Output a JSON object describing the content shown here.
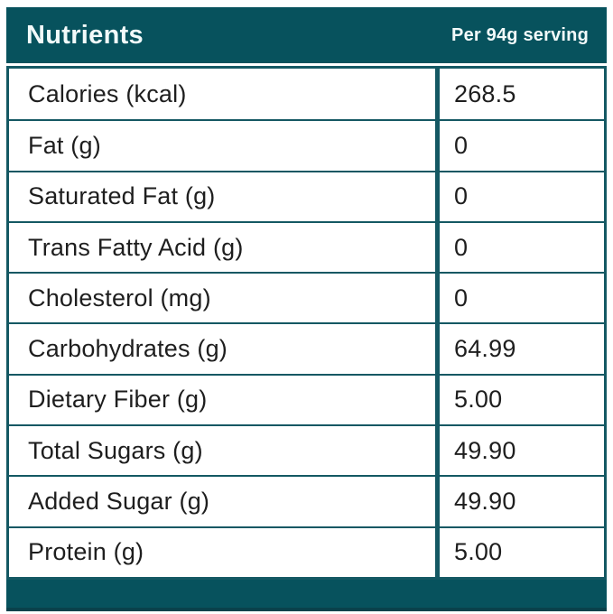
{
  "header": {
    "title": "Nutrients",
    "serving_label": "Per 94g serving"
  },
  "table": {
    "columns": [
      "Nutrients",
      "Per 94g serving"
    ],
    "rows": [
      {
        "label": "Calories (kcal)",
        "value": "268.5"
      },
      {
        "label": "Fat (g)",
        "value": "0"
      },
      {
        "label": "Saturated Fat (g)",
        "value": "0"
      },
      {
        "label": "Trans Fatty Acid (g)",
        "value": "0"
      },
      {
        "label": "Cholesterol (mg)",
        "value": "0"
      },
      {
        "label": "Carbohydrates (g)",
        "value": "64.99"
      },
      {
        "label": "Dietary Fiber (g)",
        "value": "5.00"
      },
      {
        "label": "Total Sugars (g)",
        "value": "49.90"
      },
      {
        "label": "Added Sugar (g)",
        "value": "49.90"
      },
      {
        "label": "Protein (g)",
        "value": "5.00"
      }
    ]
  },
  "colors": {
    "band_teal": "#07525d",
    "border_teal": "#145863",
    "footer_edge": "#0a414b",
    "text_dark": "#1e1e1e",
    "text_light": "#f2fafa"
  }
}
